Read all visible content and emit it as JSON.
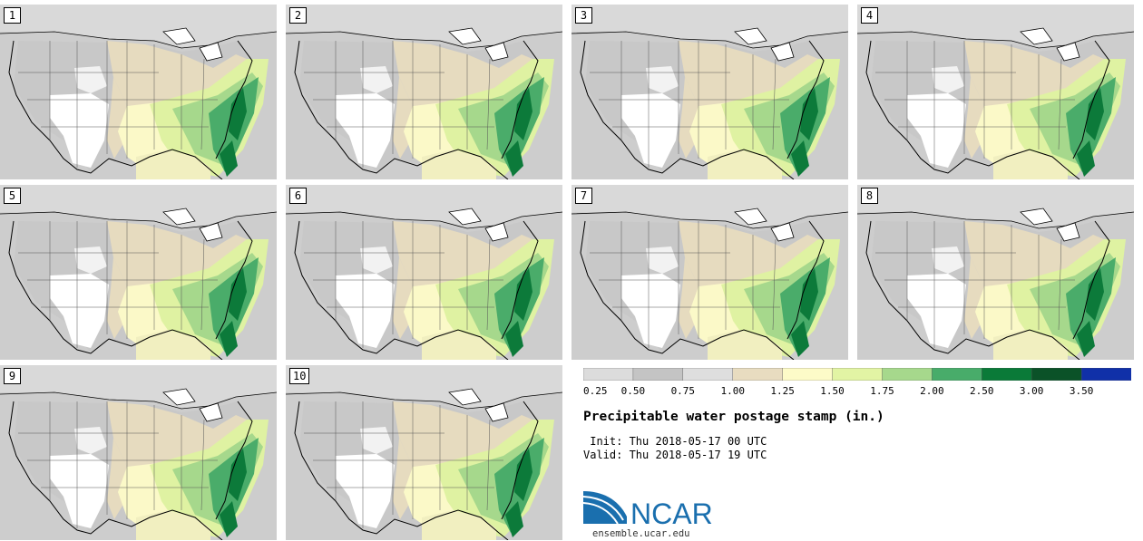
{
  "panels": [
    {
      "label": "1"
    },
    {
      "label": "2"
    },
    {
      "label": "3"
    },
    {
      "label": "4"
    },
    {
      "label": "5"
    },
    {
      "label": "6"
    },
    {
      "label": "7"
    },
    {
      "label": "8"
    },
    {
      "label": "9"
    },
    {
      "label": "10"
    }
  ],
  "legend": {
    "ticks": [
      "0.25",
      "0.50",
      "0.75",
      "1.00",
      "1.25",
      "1.50",
      "1.75",
      "2.00",
      "2.50",
      "3.00",
      "3.50"
    ],
    "colors": [
      "#dcdcdc",
      "#c4c4c4",
      "#dedede",
      "#e8dcc0",
      "#fdfbc8",
      "#e2f4a4",
      "#a6d88c",
      "#48ac6a",
      "#0a7a38",
      "#0b5228",
      "#1030a8"
    ]
  },
  "title": "Precipitable water postage stamp (in.)",
  "init": " Init: Thu 2018-05-17 00 UTC",
  "valid": "Valid: Thu 2018-05-17 19 UTC",
  "logo_text": "NCAR",
  "site": "ensemble.ucar.edu",
  "colors": {
    "water": "#d2d2d2",
    "land_gray": "#cbcbcb",
    "land_white": "#ffffff",
    "tan": "#e6dbbf",
    "yellow": "#fbf9c8",
    "lightgreen": "#dff2a2",
    "midgreen": "#a6d88c",
    "green": "#4aac6a",
    "darkgreen": "#0c7a3a",
    "logo_blue": "#1a6fae"
  }
}
